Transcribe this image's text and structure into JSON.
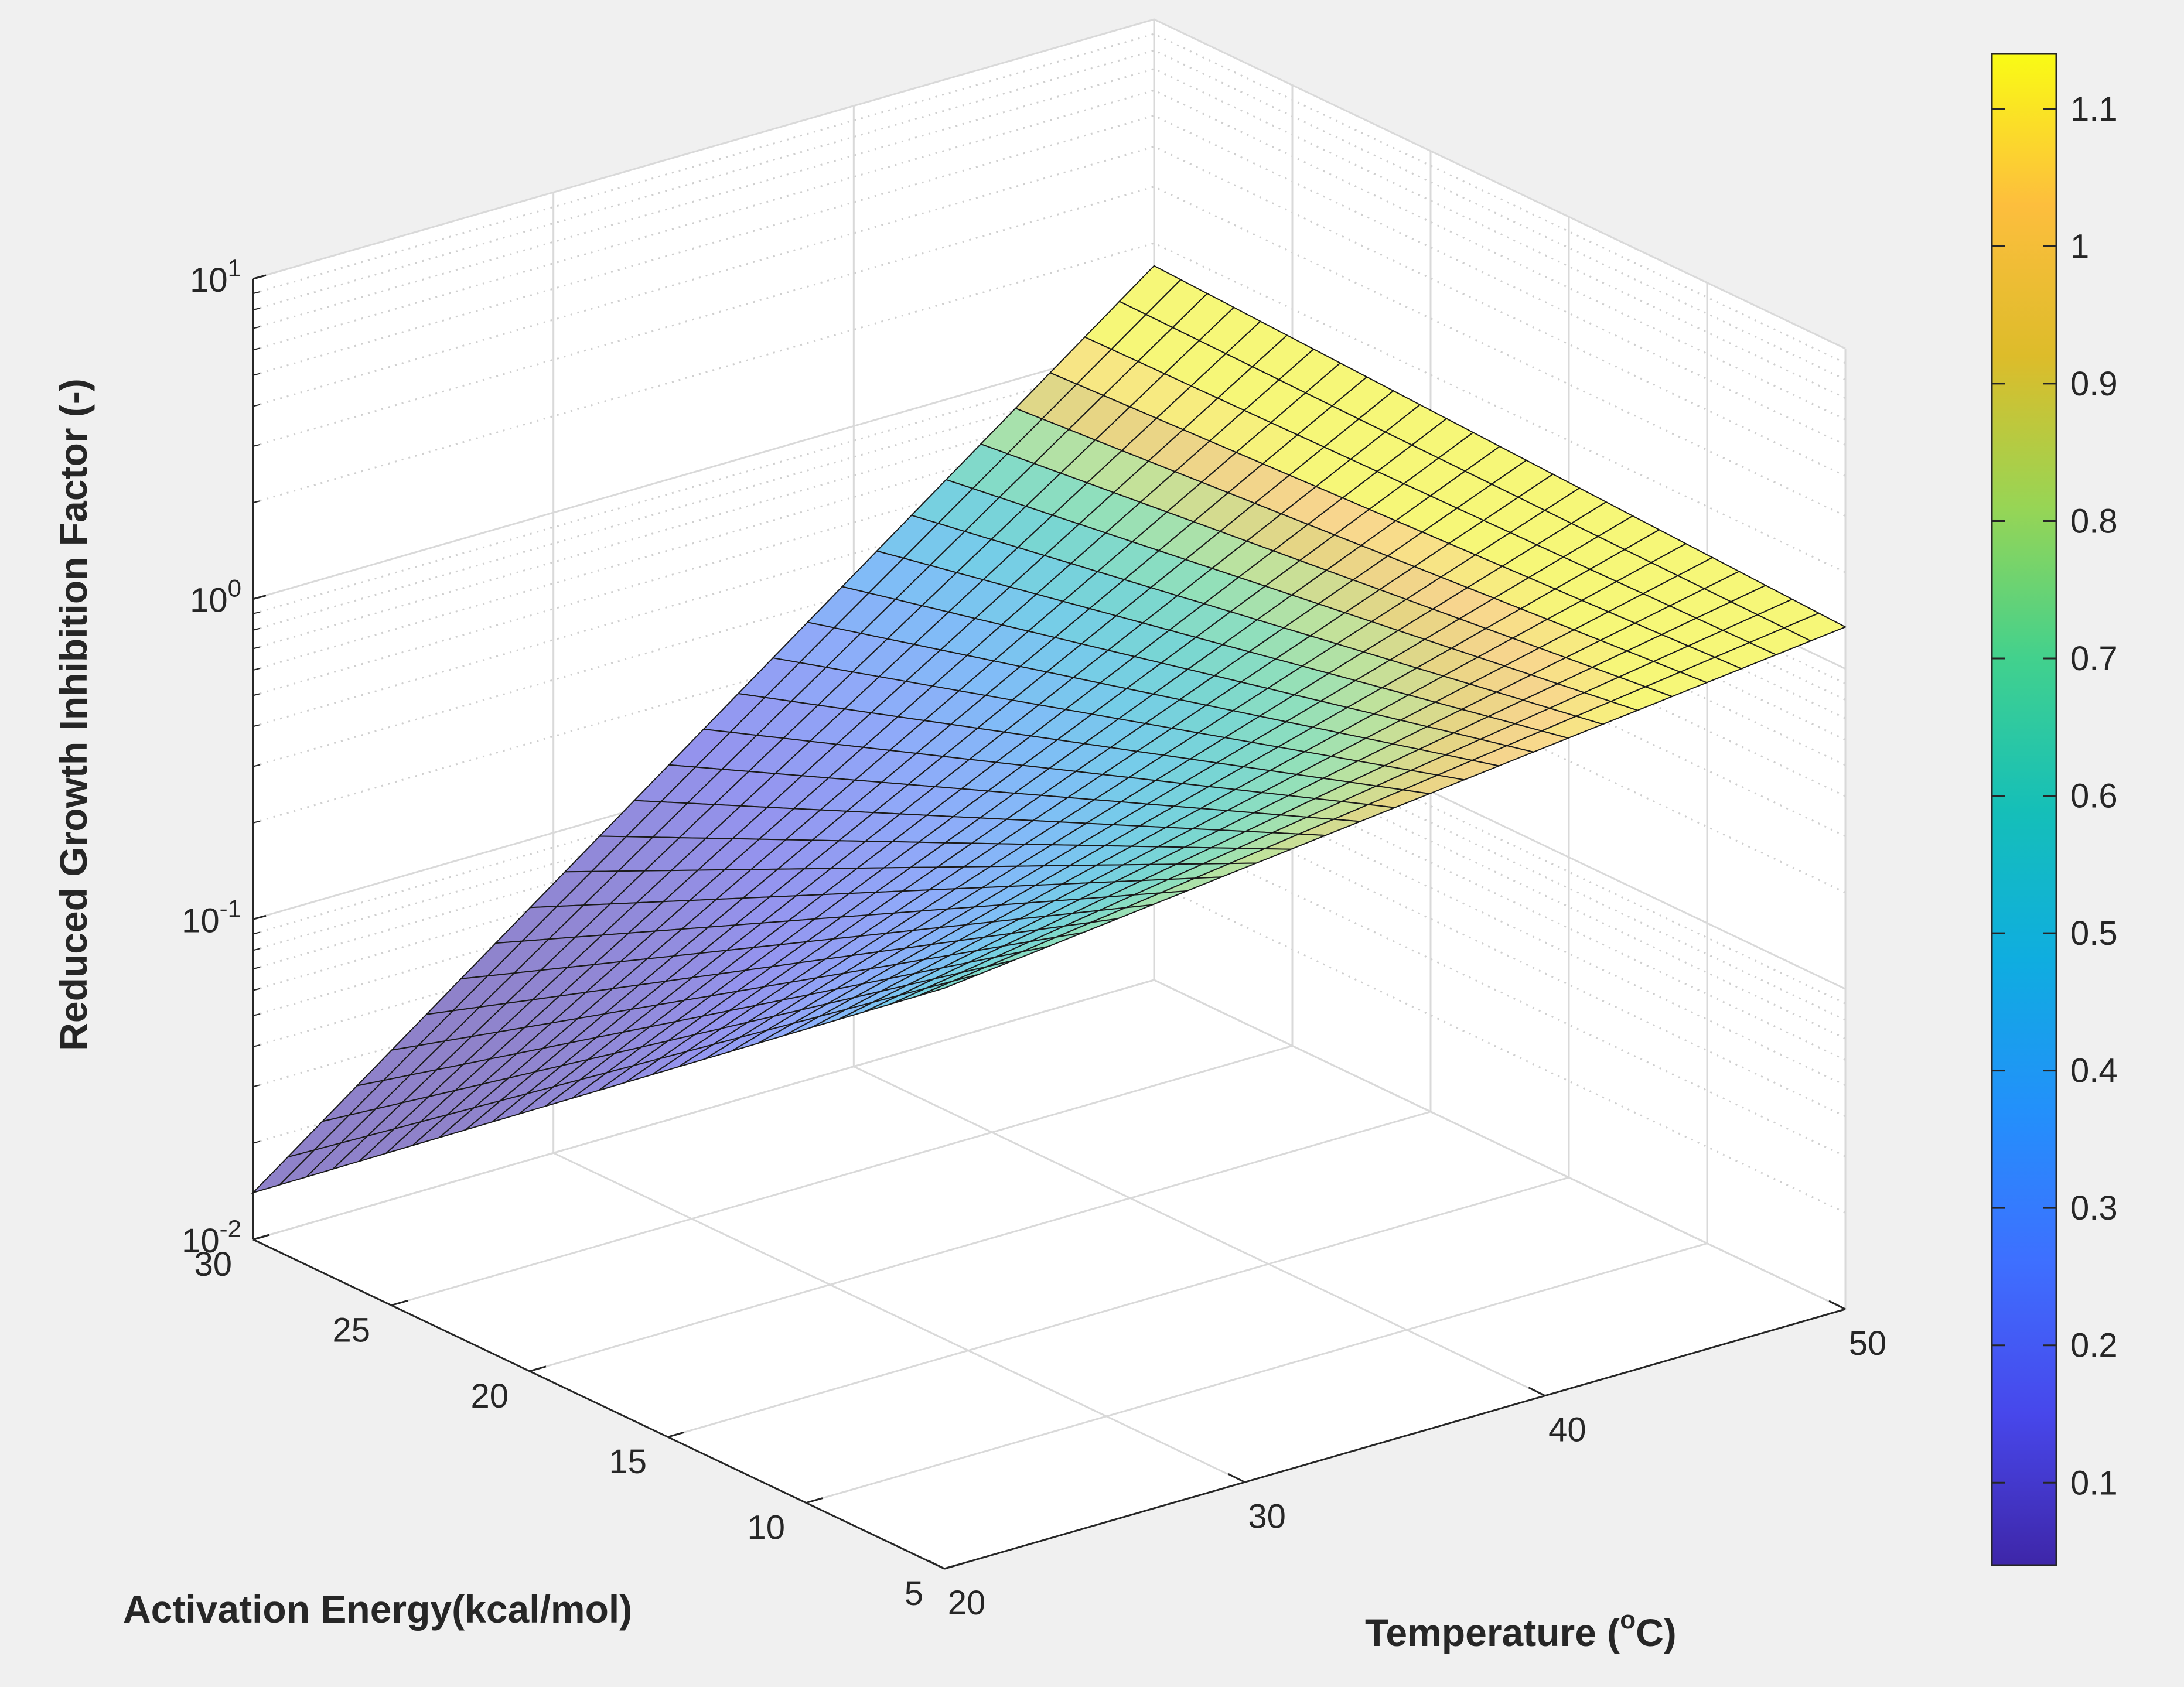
{
  "chart_data": {
    "type": "surface",
    "xlabel": "Temperature (",
    "xlabel_sup": "o",
    "xlabel_end": "C)",
    "ylabel": "Activation Energy(kcal/mol)",
    "zlabel": "Reduced Growth Inhibition Factor (-)",
    "x_range": [
      20,
      50
    ],
    "y_range": [
      5,
      30
    ],
    "z_range": [
      0.01,
      10
    ],
    "z_scale": "log",
    "x_ticks": [
      "20",
      "30",
      "40",
      "50"
    ],
    "y_ticks": [
      "5",
      "10",
      "15",
      "20",
      "25",
      "30"
    ],
    "z_ticks": [
      {
        "base": "10",
        "exp": "-2"
      },
      {
        "base": "10",
        "exp": "-1"
      },
      {
        "base": "10",
        "exp": "0"
      },
      {
        "base": "10",
        "exp": "1"
      }
    ],
    "grid": true,
    "colormap": "parula",
    "colorbar": {
      "range": [
        0.04,
        1.14
      ],
      "ticks": [
        "0.1",
        "0.2",
        "0.3",
        "0.4",
        "0.5",
        "0.6",
        "0.7",
        "0.8",
        "0.9",
        "1",
        "1.1"
      ],
      "tick_values": [
        0.1,
        0.2,
        0.3,
        0.4,
        0.5,
        0.6,
        0.7,
        0.8,
        0.9,
        1.0,
        1.1
      ]
    },
    "surface": {
      "corner_values": [
        {
          "temperature": 20,
          "activation_energy": 5,
          "value": 0.65
        },
        {
          "temperature": 50,
          "activation_energy": 5,
          "value": 1.35
        },
        {
          "temperature": 20,
          "activation_energy": 30,
          "value": 0.014
        },
        {
          "temperature": 50,
          "activation_energy": 30,
          "value": 1.7
        }
      ],
      "grid_size": 26
    }
  }
}
